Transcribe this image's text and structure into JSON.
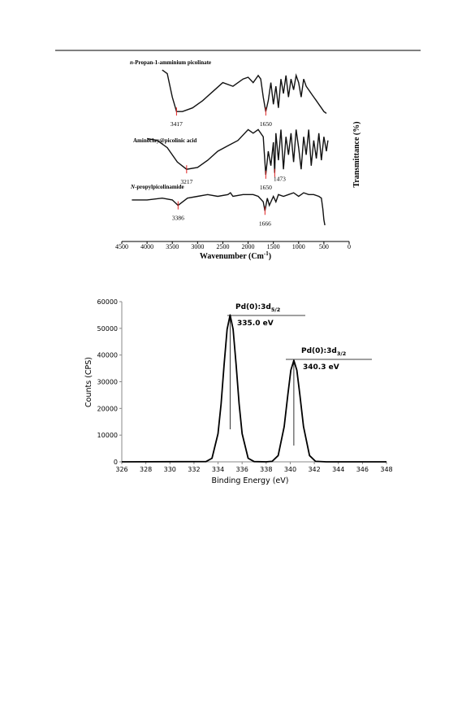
{
  "chart_data": [
    {
      "type": "line",
      "x_label": {
        "text": "Wavenumber (Cm",
        "sup": "-1",
        "tail": ")"
      },
      "y_label": "Transmittance (%)",
      "xlim": [
        4500,
        0
      ],
      "xticks": [
        4500,
        4000,
        3500,
        3000,
        2500,
        2000,
        1500,
        1000,
        500,
        0
      ],
      "ylim": [
        0,
        100
      ],
      "series": [
        {
          "name": {
            "italic": "n",
            "text": "-Propan-1-amminium picolinate"
          },
          "color": "#111111",
          "x": [
            3700,
            3600,
            3500,
            3417,
            3300,
            3100,
            2900,
            2700,
            2500,
            2300,
            2100,
            2000,
            1900,
            1800,
            1750,
            1700,
            1650,
            1600,
            1550,
            1500,
            1450,
            1400,
            1350,
            1300,
            1250,
            1200,
            1150,
            1100,
            1050,
            1000,
            950,
            900,
            850,
            800,
            750,
            700,
            650,
            600,
            550,
            500,
            450
          ],
          "values": [
            95,
            93,
            80,
            72,
            72,
            74,
            78,
            83,
            88,
            86,
            90,
            91,
            88,
            92,
            90,
            80,
            72,
            78,
            88,
            76,
            86,
            74,
            90,
            82,
            92,
            80,
            90,
            84,
            92,
            88,
            80,
            90,
            86,
            84,
            82,
            80,
            78,
            76,
            74,
            72,
            71
          ],
          "peaks": [
            3417,
            1650
          ]
        },
        {
          "name": {
            "italic": "",
            "text": "Aminoclay@picolinic acid"
          },
          "color": "#111111",
          "x": [
            4000,
            3800,
            3600,
            3400,
            3217,
            3000,
            2800,
            2600,
            2400,
            2200,
            2000,
            1900,
            1800,
            1700,
            1650,
            1600,
            1550,
            1500,
            1473,
            1450,
            1400,
            1350,
            1300,
            1250,
            1200,
            1150,
            1100,
            1050,
            1000,
            950,
            900,
            850,
            800,
            750,
            700,
            650,
            600,
            550,
            500,
            450,
            420
          ],
          "values": [
            57,
            56,
            52,
            44,
            40,
            41,
            45,
            50,
            53,
            56,
            62,
            60,
            62,
            58,
            37,
            50,
            42,
            55,
            38,
            60,
            45,
            62,
            40,
            58,
            48,
            60,
            44,
            62,
            52,
            40,
            58,
            48,
            62,
            42,
            56,
            46,
            60,
            45,
            58,
            50,
            56
          ],
          "peaks": [
            3217,
            1650,
            1473
          ]
        },
        {
          "name": {
            "italic": "N",
            "text": "-propylpicolinamide"
          },
          "color": "#111111",
          "x": [
            4300,
            4000,
            3700,
            3500,
            3386,
            3200,
            3000,
            2800,
            2600,
            2400,
            2350,
            2300,
            2100,
            1900,
            1800,
            1700,
            1666,
            1620,
            1580,
            1500,
            1450,
            1400,
            1300,
            1200,
            1100,
            1000,
            950,
            900,
            800,
            700,
            600,
            550,
            520,
            500,
            480
          ],
          "values": [
            23,
            23,
            24,
            23,
            20,
            24,
            25,
            26,
            25,
            26,
            27,
            25,
            26,
            26,
            25,
            22,
            17,
            24,
            20,
            25,
            22,
            26,
            25,
            26,
            27,
            25,
            26,
            27,
            26,
            26,
            25,
            24,
            18,
            12,
            9
          ],
          "peaks": [
            3386,
            1666
          ]
        }
      ]
    },
    {
      "type": "line",
      "x_label": "Binding Energy (eV)",
      "y_label": "Counts (CPS)",
      "xlim": [
        326,
        348
      ],
      "xticks": [
        326,
        328,
        330,
        332,
        334,
        336,
        338,
        340,
        342,
        344,
        346,
        348
      ],
      "ylim": [
        0,
        60000
      ],
      "yticks": [
        0,
        10000,
        20000,
        30000,
        40000,
        50000,
        60000
      ],
      "series": [
        {
          "name": null,
          "color": "#000000",
          "x": [
            326,
            333,
            333.5,
            334,
            334.25,
            334.5,
            334.75,
            335,
            335.25,
            335.5,
            335.75,
            336,
            336.5,
            337,
            338,
            338.5,
            339,
            339.5,
            339.8,
            340.05,
            340.3,
            340.55,
            340.8,
            341.1,
            341.6,
            342.1,
            343,
            348
          ],
          "values": [
            0,
            100,
            1340,
            10530,
            21700,
            36390,
            49600,
            55000,
            49600,
            36390,
            21700,
            10530,
            1340,
            100,
            0,
            180,
            2330,
            13190,
            25140,
            34280,
            38000,
            34280,
            25140,
            13190,
            2330,
            180,
            0,
            0
          ]
        }
      ],
      "peaks": [
        {
          "x": 335.0,
          "label": "335.0 eV",
          "title": {
            "text": "Pd(0):3d",
            "sub": "5/2"
          }
        },
        {
          "x": 340.3,
          "label": "340.3 eV",
          "title": {
            "text": "Pd(0):3d",
            "sub": "3/2"
          }
        }
      ]
    }
  ]
}
